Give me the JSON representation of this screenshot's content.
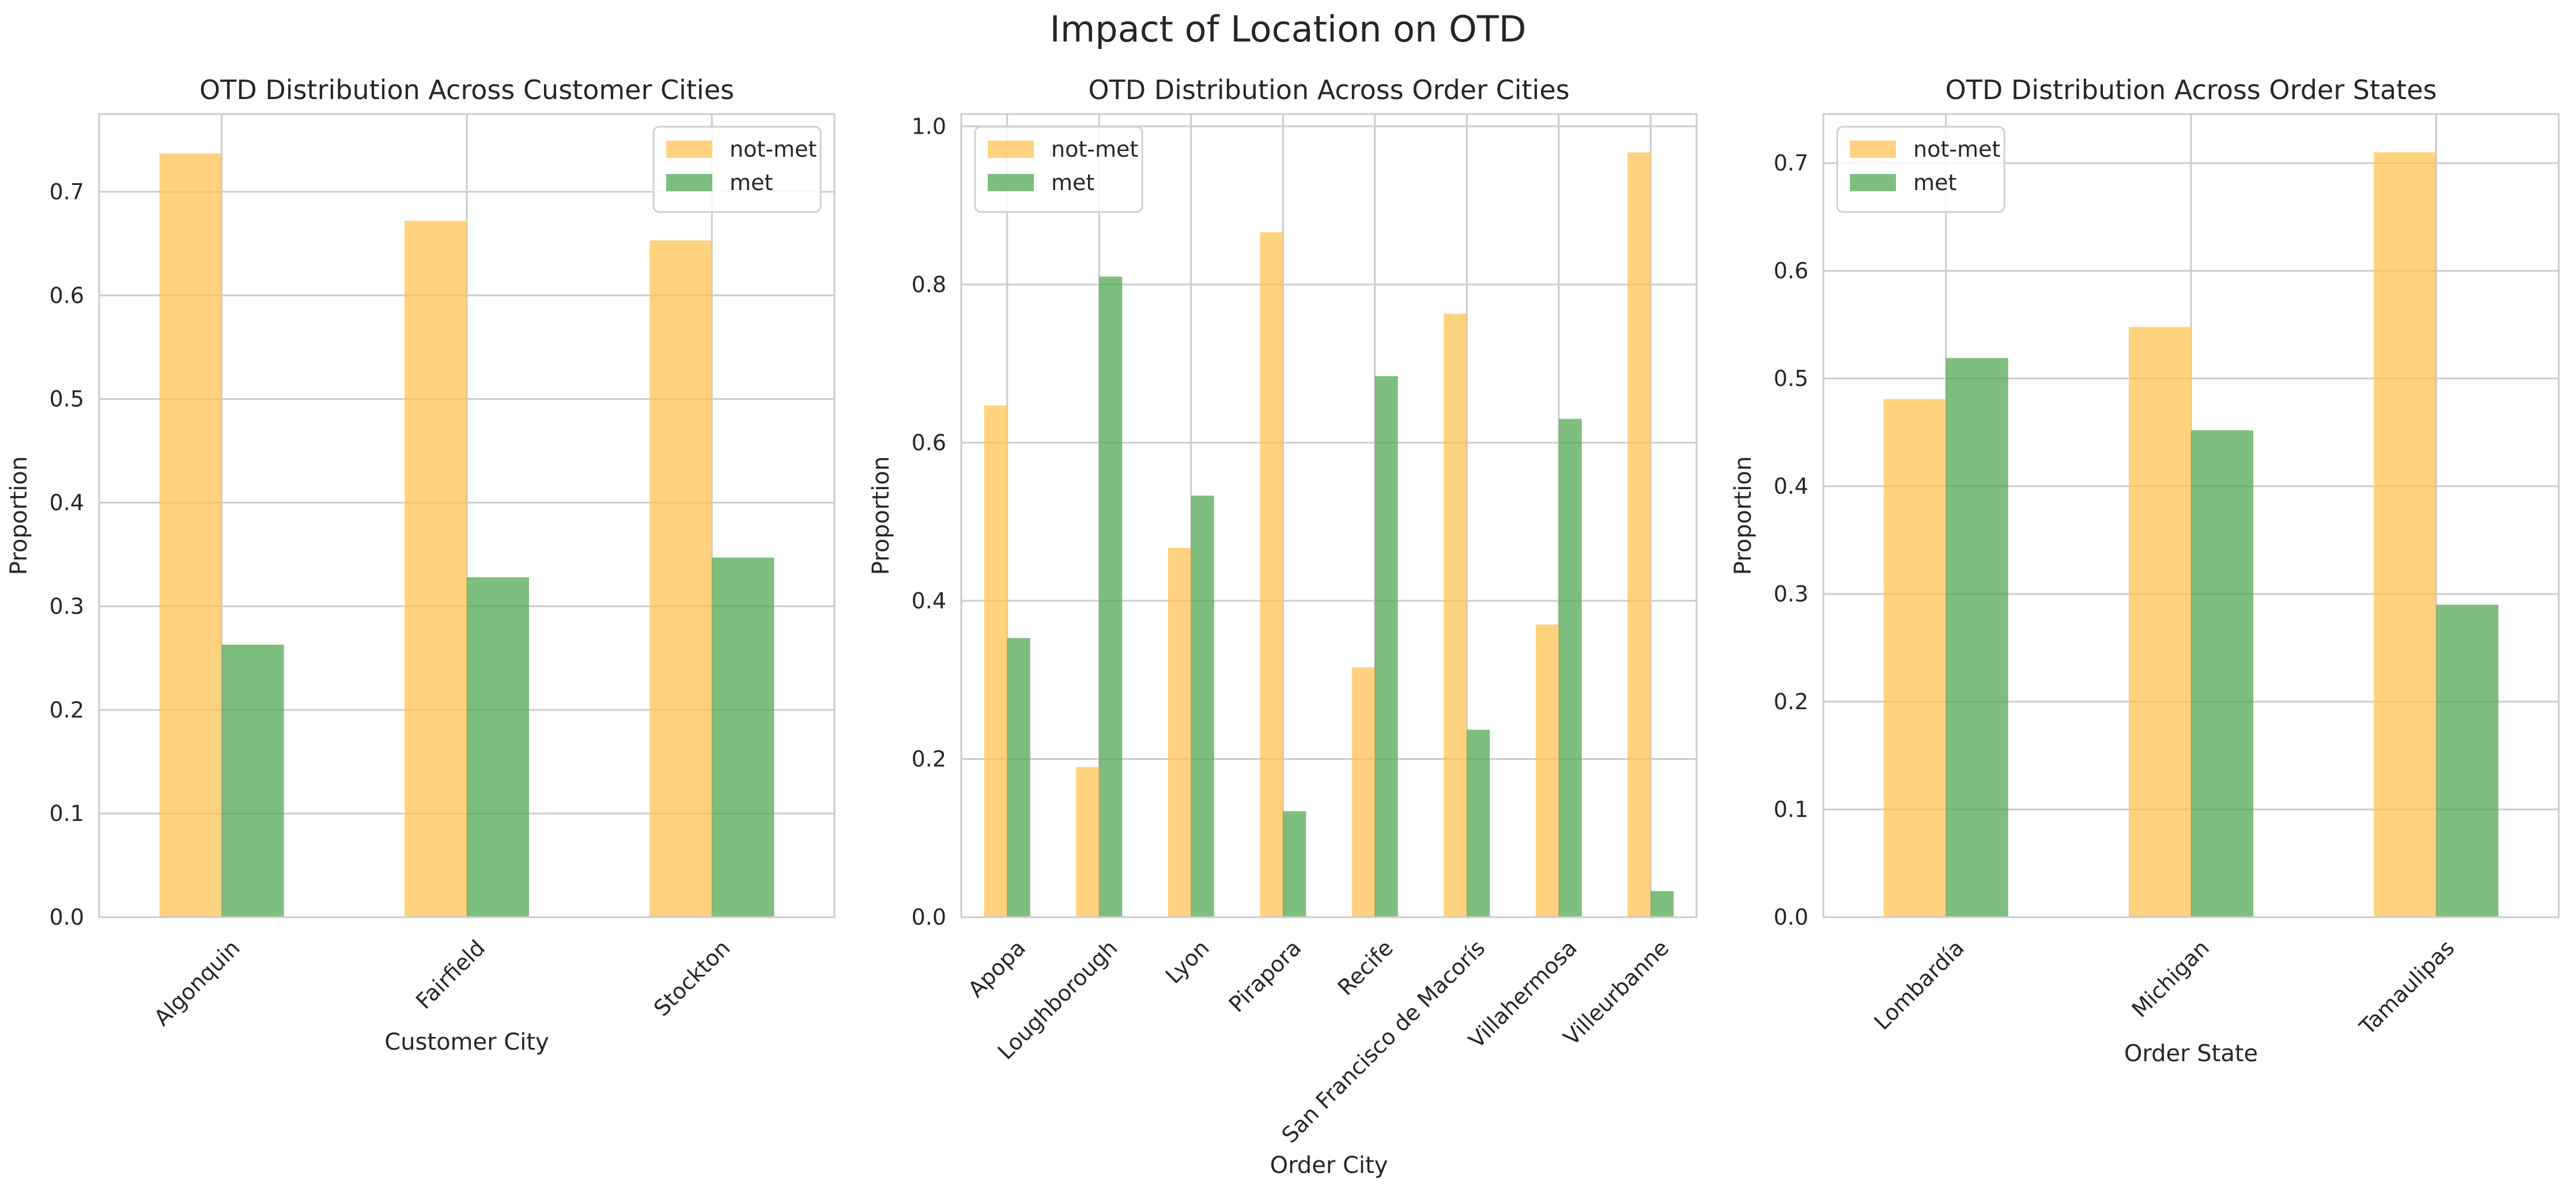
{
  "figure": {
    "suptitle": "Impact of Location on OTD"
  },
  "colors": {
    "not_met": "#ffc04d",
    "met": "#4ca64c",
    "grid": "#cccccc",
    "spine": "#cccccc"
  },
  "chart_data": [
    {
      "type": "bar",
      "title": "OTD Distribution Across Customer Cities",
      "xlabel": "Customer City",
      "ylabel": "Proportion",
      "categories": [
        "Algonquin",
        "Fairfield",
        "Stockton"
      ],
      "series": [
        {
          "name": "not-met",
          "values": [
            0.737,
            0.672,
            0.653
          ]
        },
        {
          "name": "met",
          "values": [
            0.263,
            0.328,
            0.347
          ]
        }
      ],
      "ylim": [
        0,
        0.775
      ],
      "yticks": [
        0.0,
        0.1,
        0.2,
        0.3,
        0.4,
        0.5,
        0.6,
        0.7
      ],
      "yticklabels": [
        "0.0",
        "0.1",
        "0.2",
        "0.3",
        "0.4",
        "0.5",
        "0.6",
        "0.7"
      ],
      "legend": "upper right",
      "grid": true
    },
    {
      "type": "bar",
      "title": "OTD Distribution Across Order Cities",
      "xlabel": "Order City",
      "ylabel": "Proportion",
      "categories": [
        "Apopa",
        "Loughborough",
        "Lyon",
        "Pirapora",
        "Recife",
        "San Francisco de Macorís",
        "Villahermosa",
        "Villeurbanne"
      ],
      "series": [
        {
          "name": "not-met",
          "values": [
            0.647,
            0.19,
            0.467,
            0.866,
            0.316,
            0.763,
            0.37,
            0.967
          ]
        },
        {
          "name": "met",
          "values": [
            0.353,
            0.81,
            0.533,
            0.134,
            0.684,
            0.237,
            0.63,
            0.033
          ]
        }
      ],
      "ylim": [
        0,
        1.0155
      ],
      "yticks": [
        0.0,
        0.2,
        0.4,
        0.6,
        0.8,
        1.0
      ],
      "yticklabels": [
        "0.0",
        "0.2",
        "0.4",
        "0.6",
        "0.8",
        "1.0"
      ],
      "legend": "upper left",
      "grid": true
    },
    {
      "type": "bar",
      "title": "OTD Distribution Across Order States",
      "xlabel": "Order State",
      "ylabel": "Proportion",
      "categories": [
        "Lombardía",
        "Michigan",
        "Tamaulipas"
      ],
      "series": [
        {
          "name": "not-met",
          "values": [
            0.481,
            0.548,
            0.71
          ]
        },
        {
          "name": "met",
          "values": [
            0.519,
            0.452,
            0.29
          ]
        }
      ],
      "ylim": [
        0,
        0.7455
      ],
      "yticks": [
        0.0,
        0.1,
        0.2,
        0.3,
        0.4,
        0.5,
        0.6,
        0.7
      ],
      "yticklabels": [
        "0.0",
        "0.1",
        "0.2",
        "0.3",
        "0.4",
        "0.5",
        "0.6",
        "0.7"
      ],
      "legend": "upper left",
      "grid": true
    }
  ]
}
